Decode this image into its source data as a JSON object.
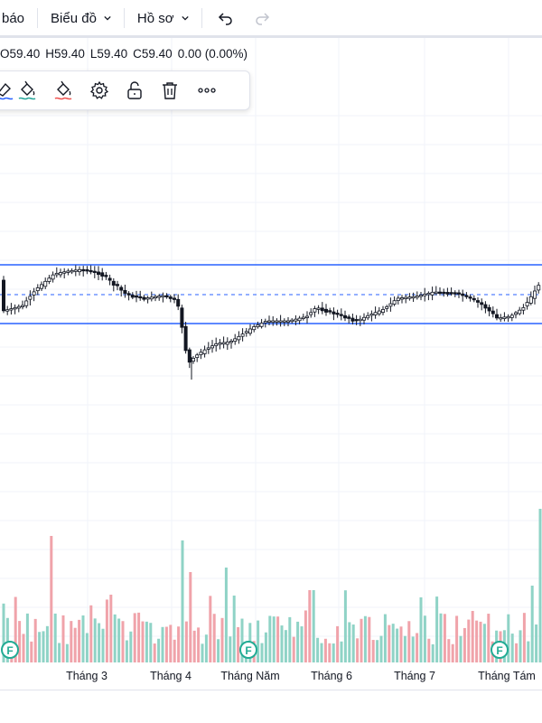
{
  "topbar": {
    "items": [
      {
        "label": "báo",
        "icon": "none"
      },
      {
        "label": "Biểu đồ",
        "icon": "chevron-down-icon"
      },
      {
        "label": "Hồ sơ",
        "icon": "chevron-down-icon"
      }
    ],
    "undo_icon": "undo-icon",
    "redo_icon": "redo-icon"
  },
  "ohlc": {
    "open": "O59.40",
    "high": "H59.40",
    "low": "L59.40",
    "close": "C59.40",
    "change": "0.00 (0.00%)"
  },
  "toolbar": {
    "icons": [
      "line-color-icon",
      "fill-color-green-icon",
      "fill-color-red-icon",
      "settings-icon",
      "lock-icon",
      "trash-icon",
      "more-icon"
    ]
  },
  "chart_data": {
    "type": "candlestick-with-volume",
    "x_labels": [
      "Tháng 3",
      "Tháng 4",
      "Tháng Năm",
      "Tháng 6",
      "Tháng 7",
      "Tháng Tám"
    ],
    "event_markers": [
      "F",
      "F",
      "F"
    ],
    "colors": {
      "up": "#26a69a",
      "down": "#ef5350",
      "volume_up": "#8fd3c6",
      "volume_down": "#f0a3aa",
      "channel": "#2962ff",
      "grid": "#f0f3fa",
      "marker": "#22ab94"
    }
  }
}
